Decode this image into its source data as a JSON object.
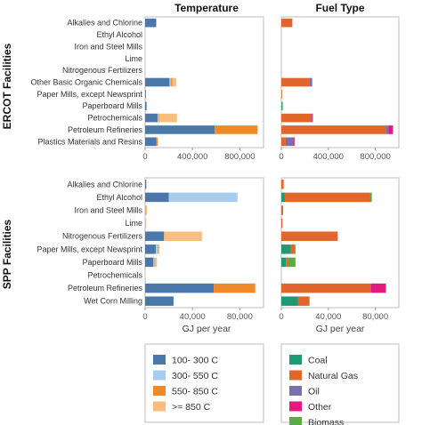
{
  "titles": {
    "left": "Temperature",
    "right": "Fuel Type"
  },
  "groups": {
    "top": "ERCOT Facilities",
    "bottom": "SPP Facilities"
  },
  "xlabel": "GJ per year",
  "colors": {
    "100- 300 C": "#4a78aa",
    "300- 550 C": "#a6cdec",
    "550- 850 C": "#ef8a2b",
    ">= 850 C": "#f7be80",
    "Coal": "#1f9a74",
    "Natural Gas": "#e0662b",
    "Oil": "#7a70ae",
    "Other": "#e3197f",
    "Biomass": "#5caa46"
  },
  "legend": {
    "temperature": [
      "100- 300 C",
      "300- 550 C",
      "550- 850 C",
      ">= 850 C"
    ],
    "fuel": [
      "Coal",
      "Natural Gas",
      "Oil",
      "Other",
      "Biomass"
    ]
  },
  "chart_data": [
    {
      "type": "bar",
      "panel": "ERCOT Facilities - Temperature",
      "title": "Temperature",
      "xlabel": "",
      "xlim": [
        0,
        800000
      ],
      "xticks": [
        "0",
        "400,000",
        "800,000"
      ],
      "categories": [
        "Alkalies and Chlorine",
        "Ethyl Alcohol",
        "Iron and Steel Mills",
        "Lime",
        "Nitrogenous Fertilizers",
        "Other Basic Organic Chemicals",
        "Paper Mills, except Newsprint",
        "Paperboard Mills",
        "Petrochemicals",
        "Petroleum Refineries",
        "Plastics Materials and Resins"
      ],
      "series": [
        {
          "name": "100- 300 C",
          "values": [
            75000,
            0,
            0,
            0,
            0,
            165000,
            5000,
            10000,
            85000,
            470000,
            75000
          ]
        },
        {
          "name": "300- 550 C",
          "values": [
            0,
            0,
            0,
            0,
            0,
            10000,
            0,
            0,
            5000,
            0,
            0
          ]
        },
        {
          "name": "550- 850 C",
          "values": [
            0,
            0,
            0,
            0,
            0,
            10000,
            0,
            0,
            5000,
            290000,
            10000
          ]
        },
        {
          "name": ">= 850 C",
          "values": [
            0,
            0,
            0,
            0,
            0,
            25000,
            0,
            0,
            120000,
            0,
            0
          ]
        }
      ]
    },
    {
      "type": "bar",
      "panel": "ERCOT Facilities - Fuel Type",
      "title": "Fuel Type",
      "xlabel": "",
      "xlim": [
        0,
        800000
      ],
      "xticks": [
        "0",
        "400,000",
        "800,000"
      ],
      "categories": [
        "Alkalies and Chlorine",
        "Ethyl Alcohol",
        "Iron and Steel Mills",
        "Lime",
        "Nitrogenous Fertilizers",
        "Other Basic Organic Chemicals",
        "Paper Mills, except Newsprint",
        "Paperboard Mills",
        "Petrochemicals",
        "Petroleum Refineries",
        "Plastics Materials and Resins"
      ],
      "series": [
        {
          "name": "Coal",
          "values": [
            0,
            0,
            0,
            0,
            0,
            0,
            0,
            5000,
            0,
            0,
            0
          ]
        },
        {
          "name": "Natural Gas",
          "values": [
            75000,
            0,
            0,
            0,
            0,
            190000,
            5000,
            0,
            200000,
            710000,
            30000
          ]
        },
        {
          "name": "Oil",
          "values": [
            0,
            0,
            0,
            0,
            0,
            20000,
            0,
            0,
            10000,
            20000,
            50000
          ]
        },
        {
          "name": "Other",
          "values": [
            0,
            0,
            0,
            0,
            0,
            0,
            0,
            0,
            5000,
            30000,
            10000
          ]
        },
        {
          "name": "Biomass",
          "values": [
            0,
            0,
            0,
            0,
            0,
            0,
            0,
            5000,
            0,
            0,
            0
          ]
        }
      ]
    },
    {
      "type": "bar",
      "panel": "SPP Facilities - Temperature",
      "title": "",
      "xlabel": "GJ per year",
      "xlim": [
        0,
        100000
      ],
      "xticks": [
        "0",
        "40,000",
        "80,000"
      ],
      "categories": [
        "Alkalies and Chlorine",
        "Ethyl Alcohol",
        "Iron and Steel Mills",
        "Lime",
        "Nitrogenous Fertilizers",
        "Paper Mills, except Newsprint",
        "Paperboard Mills",
        "Petrochemicals",
        "Petroleum Refineries",
        "Wet Corn Milling"
      ],
      "series": [
        {
          "name": "100- 300 C",
          "values": [
            1000,
            20000,
            0,
            0,
            16000,
            9000,
            7000,
            0,
            58000,
            24000
          ]
        },
        {
          "name": "300- 550 C",
          "values": [
            0,
            58000,
            0,
            0,
            0,
            1500,
            1000,
            0,
            0,
            0
          ]
        },
        {
          "name": "550- 850 C",
          "values": [
            0,
            0,
            500,
            0,
            0,
            500,
            500,
            0,
            35000,
            0
          ]
        },
        {
          "name": ">= 850 C",
          "values": [
            0,
            0,
            1000,
            1000,
            32000,
            1000,
            1500,
            0,
            0,
            0
          ]
        }
      ]
    },
    {
      "type": "bar",
      "panel": "SPP Facilities - Fuel Type",
      "title": "",
      "xlabel": "GJ per year",
      "xlim": [
        0,
        100000
      ],
      "xticks": [
        "0",
        "40,000",
        "80,000"
      ],
      "categories": [
        "Alkalies and Chlorine",
        "Ethyl Alcohol",
        "Iron and Steel Mills",
        "Lime",
        "Nitrogenous Fertilizers",
        "Paper Mills, except Newsprint",
        "Paperboard Mills",
        "Petrochemicals",
        "Petroleum Refineries",
        "Wet Corn Milling"
      ],
      "series": [
        {
          "name": "Coal",
          "values": [
            0,
            3000,
            0,
            0,
            0,
            8000,
            4000,
            0,
            0,
            14000
          ]
        },
        {
          "name": "Natural Gas",
          "values": [
            2000,
            72000,
            1500,
            1000,
            48000,
            4000,
            2000,
            0,
            76000,
            10000
          ]
        },
        {
          "name": "Oil",
          "values": [
            0,
            0,
            0,
            0,
            0,
            0,
            0,
            0,
            0,
            0
          ]
        },
        {
          "name": "Other",
          "values": [
            0,
            0,
            0,
            0,
            0,
            0,
            0,
            0,
            13000,
            0
          ]
        },
        {
          "name": "Biomass",
          "values": [
            0,
            2000,
            0,
            0,
            0,
            0,
            6000,
            0,
            0,
            0
          ]
        }
      ]
    }
  ]
}
